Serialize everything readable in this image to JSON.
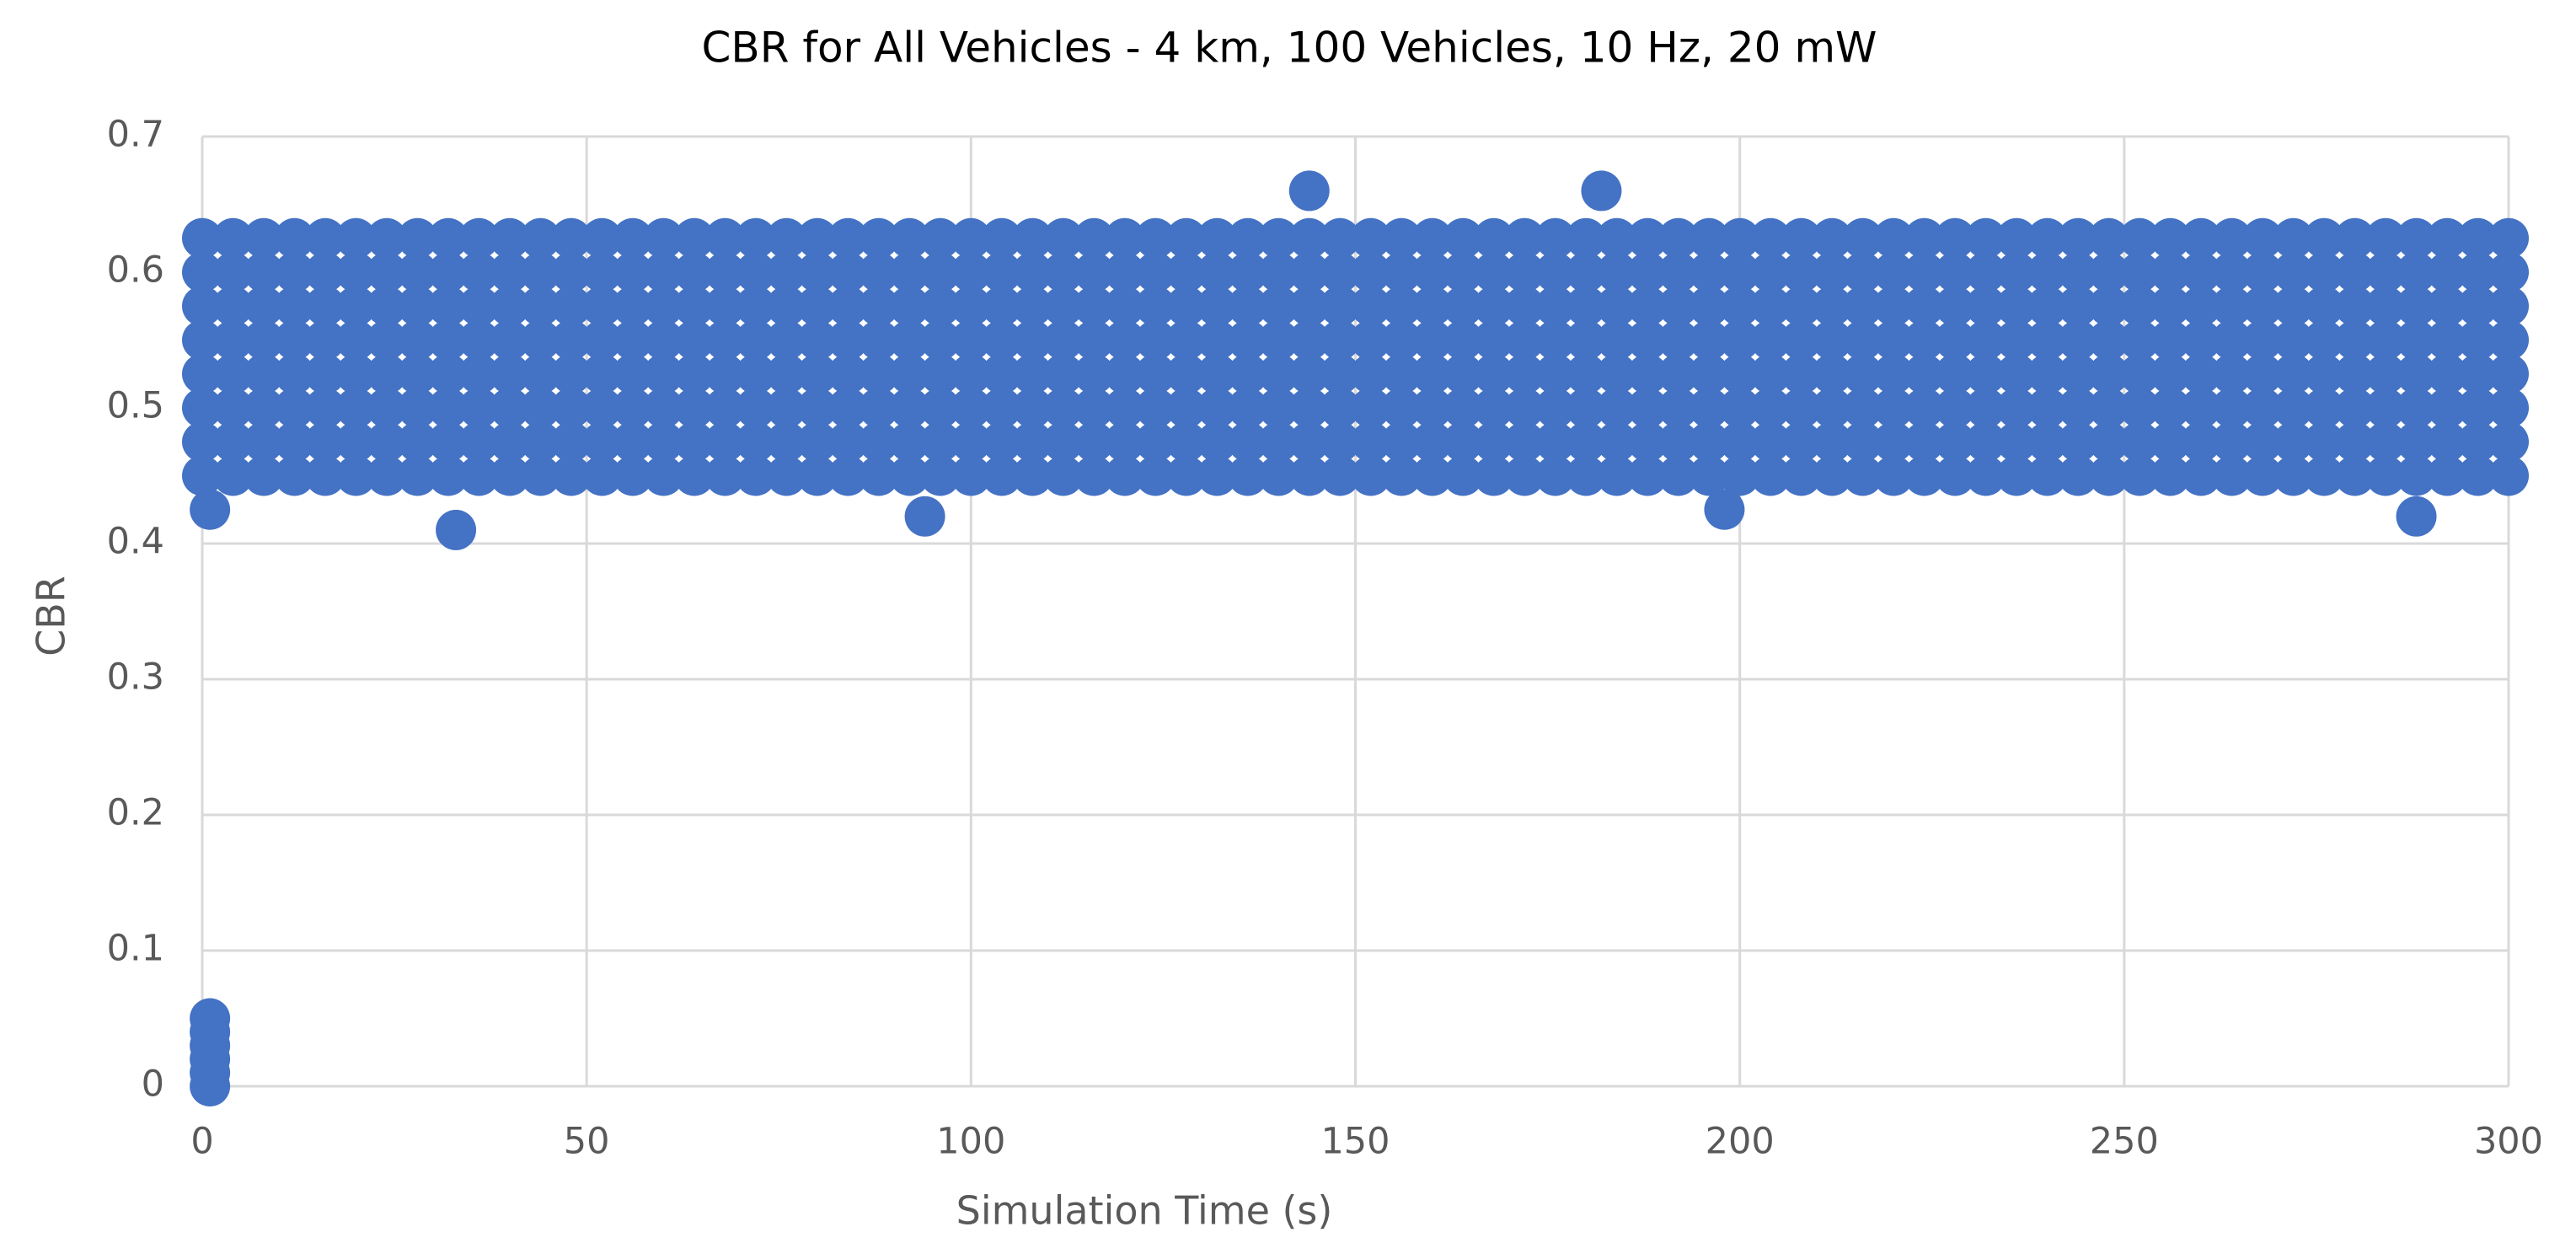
{
  "chart_data": {
    "type": "scatter",
    "title": "CBR for All Vehicles - 4 km, 100 Vehicles, 10 Hz, 20 mW",
    "xlabel": "Simulation Time (s)",
    "ylabel": "CBR",
    "color": "#4472c4",
    "grid": true,
    "xlim": [
      0,
      300
    ],
    "xticks": [
      0,
      50,
      100,
      150,
      200,
      250,
      300
    ],
    "ylim": [
      0,
      0.7
    ],
    "yticks": [
      0,
      0.1,
      0.2,
      0.3,
      0.4,
      0.5,
      0.6,
      0.7
    ],
    "x": [
      0,
      4,
      8,
      12,
      16,
      20,
      24,
      28,
      32,
      36,
      40,
      44,
      48,
      52,
      56,
      60,
      64,
      68,
      72,
      76,
      80,
      84,
      88,
      92,
      96,
      100,
      104,
      108,
      112,
      116,
      120,
      124,
      128,
      132,
      136,
      140,
      144,
      148,
      152,
      156,
      160,
      164,
      168,
      172,
      176,
      180,
      184,
      188,
      192,
      196,
      200,
      204,
      208,
      212,
      216,
      220,
      224,
      228,
      232,
      236,
      240,
      244,
      248,
      252,
      256,
      260,
      264,
      268,
      272,
      276,
      280,
      284,
      288,
      292,
      296,
      300,
      0,
      4,
      8,
      12,
      16,
      20,
      24,
      28,
      32,
      36,
      40,
      44,
      48,
      52,
      56,
      60,
      64,
      68,
      72,
      76,
      80,
      84,
      88,
      92,
      96,
      100,
      104,
      108,
      112,
      116,
      120,
      124,
      128,
      132,
      136,
      140,
      144,
      148,
      152,
      156,
      160,
      164,
      168,
      172,
      176,
      180,
      184,
      188,
      192,
      196,
      200,
      204,
      208,
      212,
      216,
      220,
      224,
      228,
      232,
      236,
      240,
      244,
      248,
      252,
      256,
      260,
      264,
      268,
      272,
      276,
      280,
      284,
      288,
      292,
      296,
      300,
      0,
      4,
      8,
      12,
      16,
      20,
      24,
      28,
      32,
      36,
      40,
      44,
      48,
      52,
      56,
      60,
      64,
      68,
      72,
      76,
      80,
      84,
      88,
      92,
      96,
      100,
      104,
      108,
      112,
      116,
      120,
      124,
      128,
      132,
      136,
      140,
      144,
      148,
      152,
      156,
      160,
      164,
      168,
      172,
      176,
      180,
      184,
      188,
      192,
      196,
      200,
      204,
      208,
      212,
      216,
      220,
      224,
      228,
      232,
      236,
      240,
      244,
      248,
      252,
      256,
      260,
      264,
      268,
      272,
      276,
      280,
      284,
      288,
      292,
      296,
      300,
      0,
      4,
      8,
      12,
      16,
      20,
      24,
      28,
      32,
      36,
      40,
      44,
      48,
      52,
      56,
      60,
      64,
      68,
      72,
      76,
      80,
      84,
      88,
      92,
      96,
      100,
      104,
      108,
      112,
      116,
      120,
      124,
      128,
      132,
      136,
      140,
      144,
      148,
      152,
      156,
      160,
      164,
      168,
      172,
      176,
      180,
      184,
      188,
      192,
      196,
      200,
      204,
      208,
      212,
      216,
      220,
      224,
      228,
      232,
      236,
      240,
      244,
      248,
      252,
      256,
      260,
      264,
      268,
      272,
      276,
      280,
      284,
      288,
      292,
      296,
      300,
      0,
      4,
      8,
      12,
      16,
      20,
      24,
      28,
      32,
      36,
      40,
      44,
      48,
      52,
      56,
      60,
      64,
      68,
      72,
      76,
      80,
      84,
      88,
      92,
      96,
      100,
      104,
      108,
      112,
      116,
      120,
      124,
      128,
      132,
      136,
      140,
      144,
      148,
      152,
      156,
      160,
      164,
      168,
      172,
      176,
      180,
      184,
      188,
      192,
      196,
      200,
      204,
      208,
      212,
      216,
      220,
      224,
      228,
      232,
      236,
      240,
      244,
      248,
      252,
      256,
      260,
      264,
      268,
      272,
      276,
      280,
      284,
      288,
      292,
      296,
      300,
      0,
      4,
      8,
      12,
      16,
      20,
      24,
      28,
      32,
      36,
      40,
      44,
      48,
      52,
      56,
      60,
      64,
      68,
      72,
      76,
      80,
      84,
      88,
      92,
      96,
      100,
      104,
      108,
      112,
      116,
      120,
      124,
      128,
      132,
      136,
      140,
      144,
      148,
      152,
      156,
      160,
      164,
      168,
      172,
      176,
      180,
      184,
      188,
      192,
      196,
      200,
      204,
      208,
      212,
      216,
      220,
      224,
      228,
      232,
      236,
      240,
      244,
      248,
      252,
      256,
      260,
      264,
      268,
      272,
      276,
      280,
      284,
      288,
      292,
      296,
      300,
      0,
      4,
      8,
      12,
      16,
      20,
      24,
      28,
      32,
      36,
      40,
      44,
      48,
      52,
      56,
      60,
      64,
      68,
      72,
      76,
      80,
      84,
      88,
      92,
      96,
      100,
      104,
      108,
      112,
      116,
      120,
      124,
      128,
      132,
      136,
      140,
      144,
      148,
      152,
      156,
      160,
      164,
      168,
      172,
      176,
      180,
      184,
      188,
      192,
      196,
      200,
      204,
      208,
      212,
      216,
      220,
      224,
      228,
      232,
      236,
      240,
      244,
      248,
      252,
      256,
      260,
      264,
      268,
      272,
      276,
      280,
      284,
      288,
      292,
      296,
      300,
      0,
      4,
      8,
      12,
      16,
      20,
      24,
      28,
      32,
      36,
      40,
      44,
      48,
      52,
      56,
      60,
      64,
      68,
      72,
      76,
      80,
      84,
      88,
      92,
      96,
      100,
      104,
      108,
      112,
      116,
      120,
      124,
      128,
      132,
      136,
      140,
      144,
      148,
      152,
      156,
      160,
      164,
      168,
      172,
      176,
      180,
      184,
      188,
      192,
      196,
      200,
      204,
      208,
      212,
      216,
      220,
      224,
      228,
      232,
      236,
      240,
      244,
      248,
      252,
      256,
      260,
      264,
      268,
      272,
      276,
      280,
      284,
      288,
      292,
      296,
      300,
      1,
      33,
      94,
      144,
      182,
      198,
      288,
      1,
      1,
      1,
      1,
      1,
      1
    ],
    "values": [
      0.45,
      0.45,
      0.45,
      0.45,
      0.45,
      0.45,
      0.45,
      0.45,
      0.45,
      0.45,
      0.45,
      0.45,
      0.45,
      0.45,
      0.45,
      0.45,
      0.45,
      0.45,
      0.45,
      0.45,
      0.45,
      0.45,
      0.45,
      0.45,
      0.45,
      0.45,
      0.45,
      0.45,
      0.45,
      0.45,
      0.45,
      0.45,
      0.45,
      0.45,
      0.45,
      0.45,
      0.45,
      0.45,
      0.45,
      0.45,
      0.45,
      0.45,
      0.45,
      0.45,
      0.45,
      0.45,
      0.45,
      0.45,
      0.45,
      0.45,
      0.45,
      0.45,
      0.45,
      0.45,
      0.45,
      0.45,
      0.45,
      0.45,
      0.45,
      0.45,
      0.45,
      0.45,
      0.45,
      0.45,
      0.45,
      0.45,
      0.45,
      0.45,
      0.45,
      0.45,
      0.45,
      0.45,
      0.45,
      0.45,
      0.45,
      0.45,
      0.475,
      0.475,
      0.475,
      0.475,
      0.475,
      0.475,
      0.475,
      0.475,
      0.475,
      0.475,
      0.475,
      0.475,
      0.475,
      0.475,
      0.475,
      0.475,
      0.475,
      0.475,
      0.475,
      0.475,
      0.475,
      0.475,
      0.475,
      0.475,
      0.475,
      0.475,
      0.475,
      0.475,
      0.475,
      0.475,
      0.475,
      0.475,
      0.475,
      0.475,
      0.475,
      0.475,
      0.475,
      0.475,
      0.475,
      0.475,
      0.475,
      0.475,
      0.475,
      0.475,
      0.475,
      0.475,
      0.475,
      0.475,
      0.475,
      0.475,
      0.475,
      0.475,
      0.475,
      0.475,
      0.475,
      0.475,
      0.475,
      0.475,
      0.475,
      0.475,
      0.475,
      0.475,
      0.475,
      0.475,
      0.475,
      0.475,
      0.475,
      0.475,
      0.475,
      0.475,
      0.475,
      0.475,
      0.475,
      0.475,
      0.475,
      0.475,
      0.5,
      0.5,
      0.5,
      0.5,
      0.5,
      0.5,
      0.5,
      0.5,
      0.5,
      0.5,
      0.5,
      0.5,
      0.5,
      0.5,
      0.5,
      0.5,
      0.5,
      0.5,
      0.5,
      0.5,
      0.5,
      0.5,
      0.5,
      0.5,
      0.5,
      0.5,
      0.5,
      0.5,
      0.5,
      0.5,
      0.5,
      0.5,
      0.5,
      0.5,
      0.5,
      0.5,
      0.5,
      0.5,
      0.5,
      0.5,
      0.5,
      0.5,
      0.5,
      0.5,
      0.5,
      0.5,
      0.5,
      0.5,
      0.5,
      0.5,
      0.5,
      0.5,
      0.5,
      0.5,
      0.5,
      0.5,
      0.5,
      0.5,
      0.5,
      0.5,
      0.5,
      0.5,
      0.5,
      0.5,
      0.5,
      0.5,
      0.5,
      0.5,
      0.5,
      0.5,
      0.5,
      0.5,
      0.5,
      0.5,
      0.5,
      0.5,
      0.525,
      0.525,
      0.525,
      0.525,
      0.525,
      0.525,
      0.525,
      0.525,
      0.525,
      0.525,
      0.525,
      0.525,
      0.525,
      0.525,
      0.525,
      0.525,
      0.525,
      0.525,
      0.525,
      0.525,
      0.525,
      0.525,
      0.525,
      0.525,
      0.525,
      0.525,
      0.525,
      0.525,
      0.525,
      0.525,
      0.525,
      0.525,
      0.525,
      0.525,
      0.525,
      0.525,
      0.525,
      0.525,
      0.525,
      0.525,
      0.525,
      0.525,
      0.525,
      0.525,
      0.525,
      0.525,
      0.525,
      0.525,
      0.525,
      0.525,
      0.525,
      0.525,
      0.525,
      0.525,
      0.525,
      0.525,
      0.525,
      0.525,
      0.525,
      0.525,
      0.525,
      0.525,
      0.525,
      0.525,
      0.525,
      0.525,
      0.525,
      0.525,
      0.525,
      0.525,
      0.525,
      0.525,
      0.525,
      0.525,
      0.525,
      0.525,
      0.55,
      0.55,
      0.55,
      0.55,
      0.55,
      0.55,
      0.55,
      0.55,
      0.55,
      0.55,
      0.55,
      0.55,
      0.55,
      0.55,
      0.55,
      0.55,
      0.55,
      0.55,
      0.55,
      0.55,
      0.55,
      0.55,
      0.55,
      0.55,
      0.55,
      0.55,
      0.55,
      0.55,
      0.55,
      0.55,
      0.55,
      0.55,
      0.55,
      0.55,
      0.55,
      0.55,
      0.55,
      0.55,
      0.55,
      0.55,
      0.55,
      0.55,
      0.55,
      0.55,
      0.55,
      0.55,
      0.55,
      0.55,
      0.55,
      0.55,
      0.55,
      0.55,
      0.55,
      0.55,
      0.55,
      0.55,
      0.55,
      0.55,
      0.55,
      0.55,
      0.55,
      0.55,
      0.55,
      0.55,
      0.55,
      0.55,
      0.55,
      0.55,
      0.55,
      0.55,
      0.55,
      0.55,
      0.55,
      0.55,
      0.55,
      0.55,
      0.575,
      0.575,
      0.575,
      0.575,
      0.575,
      0.575,
      0.575,
      0.575,
      0.575,
      0.575,
      0.575,
      0.575,
      0.575,
      0.575,
      0.575,
      0.575,
      0.575,
      0.575,
      0.575,
      0.575,
      0.575,
      0.575,
      0.575,
      0.575,
      0.575,
      0.575,
      0.575,
      0.575,
      0.575,
      0.575,
      0.575,
      0.575,
      0.575,
      0.575,
      0.575,
      0.575,
      0.575,
      0.575,
      0.575,
      0.575,
      0.575,
      0.575,
      0.575,
      0.575,
      0.575,
      0.575,
      0.575,
      0.575,
      0.575,
      0.575,
      0.575,
      0.575,
      0.575,
      0.575,
      0.575,
      0.575,
      0.575,
      0.575,
      0.575,
      0.575,
      0.575,
      0.575,
      0.575,
      0.575,
      0.575,
      0.575,
      0.575,
      0.575,
      0.575,
      0.575,
      0.575,
      0.575,
      0.575,
      0.575,
      0.575,
      0.575,
      0.6,
      0.6,
      0.6,
      0.6,
      0.6,
      0.6,
      0.6,
      0.6,
      0.6,
      0.6,
      0.6,
      0.6,
      0.6,
      0.6,
      0.6,
      0.6,
      0.6,
      0.6,
      0.6,
      0.6,
      0.6,
      0.6,
      0.6,
      0.6,
      0.6,
      0.6,
      0.6,
      0.6,
      0.6,
      0.6,
      0.6,
      0.6,
      0.6,
      0.6,
      0.6,
      0.6,
      0.6,
      0.6,
      0.6,
      0.6,
      0.6,
      0.6,
      0.6,
      0.6,
      0.6,
      0.6,
      0.6,
      0.6,
      0.6,
      0.6,
      0.6,
      0.6,
      0.6,
      0.6,
      0.6,
      0.6,
      0.6,
      0.6,
      0.6,
      0.6,
      0.6,
      0.6,
      0.6,
      0.6,
      0.6,
      0.6,
      0.6,
      0.6,
      0.6,
      0.6,
      0.6,
      0.6,
      0.6,
      0.6,
      0.6,
      0.6,
      0.625,
      0.625,
      0.625,
      0.625,
      0.625,
      0.625,
      0.625,
      0.625,
      0.625,
      0.625,
      0.625,
      0.625,
      0.625,
      0.625,
      0.625,
      0.625,
      0.625,
      0.625,
      0.625,
      0.625,
      0.625,
      0.625,
      0.625,
      0.625,
      0.625,
      0.625,
      0.625,
      0.625,
      0.625,
      0.625,
      0.625,
      0.625,
      0.625,
      0.625,
      0.625,
      0.625,
      0.625,
      0.625,
      0.625,
      0.625,
      0.625,
      0.625,
      0.625,
      0.625,
      0.625,
      0.625,
      0.625,
      0.625,
      0.625,
      0.625,
      0.625,
      0.625,
      0.625,
      0.625,
      0.625,
      0.625,
      0.625,
      0.625,
      0.625,
      0.625,
      0.625,
      0.625,
      0.625,
      0.625,
      0.625,
      0.625,
      0.625,
      0.625,
      0.625,
      0.625,
      0.625,
      0.625,
      0.625,
      0.625,
      0.625,
      0.625,
      0.425,
      0.41,
      0.42,
      0.66,
      0.66,
      0.425,
      0.42,
      0,
      0.01,
      0.02,
      0.03,
      0.04,
      0.05
    ]
  }
}
